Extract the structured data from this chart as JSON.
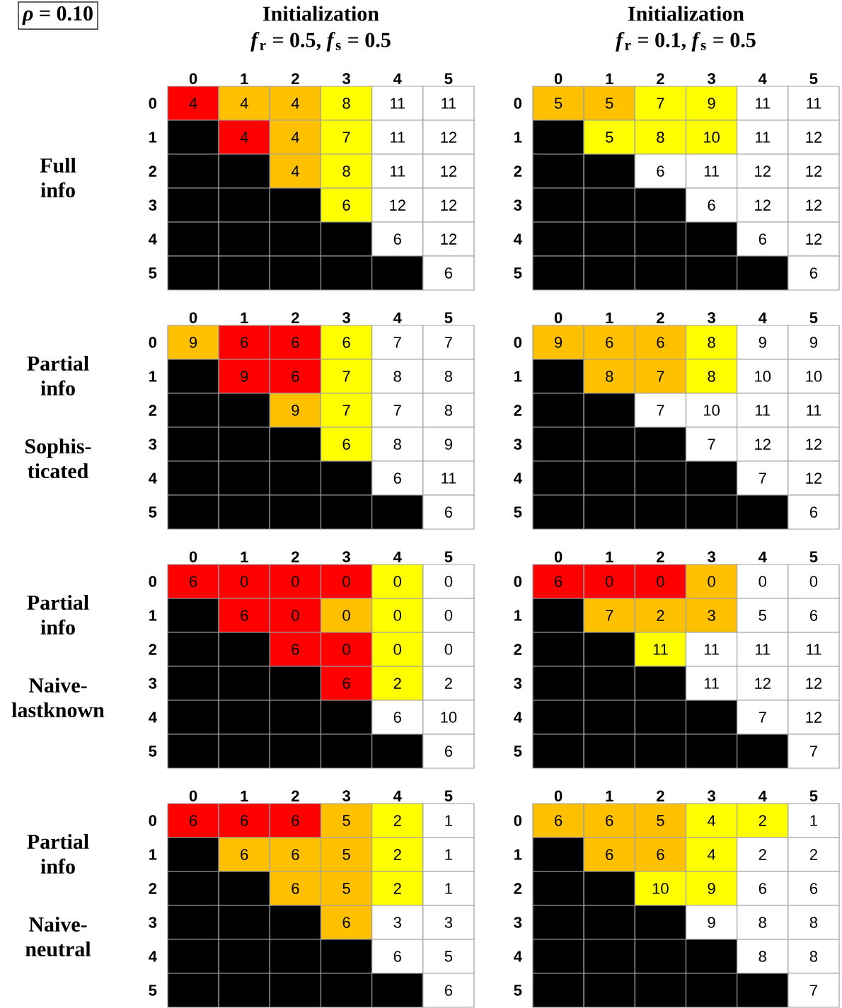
{
  "chart_data": [
    {
      "type": "heatmap",
      "title": "Initialization",
      "subtitle": "*f*$_{r}$ = 0.5, *f*$_{s}$ = 0.5",
      "ylabel": "Full info",
      "annotations": [
        "*ρ* = 0.10"
      ],
      "data_labels": true,
      "categories": [
        "0",
        "1",
        "2",
        "3",
        "4",
        "5"
      ],
      "y_categories": [
        "0",
        "1",
        "2",
        "3",
        "4",
        "5"
      ],
      "cells": [
        [
          4,
          4,
          4,
          8,
          11,
          11
        ],
        [
          null,
          4,
          4,
          7,
          11,
          12
        ],
        [
          null,
          null,
          4,
          8,
          11,
          12
        ],
        [
          null,
          null,
          null,
          6,
          12,
          12
        ],
        [
          null,
          null,
          null,
          null,
          6,
          12
        ],
        [
          null,
          null,
          null,
          null,
          null,
          6
        ]
      ],
      "colors": [
        [
          "#ff0000",
          "#ffc000",
          "#ffc000",
          "#ffff00",
          "#ffffff",
          "#ffffff"
        ],
        [
          "#000000",
          "#ff0000",
          "#ffc000",
          "#ffff00",
          "#ffffff",
          "#ffffff"
        ],
        [
          "#000000",
          "#000000",
          "#ffc000",
          "#ffff00",
          "#ffffff",
          "#ffffff"
        ],
        [
          "#000000",
          "#000000",
          "#000000",
          "#ffff00",
          "#ffffff",
          "#ffffff"
        ],
        [
          "#000000",
          "#000000",
          "#000000",
          "#000000",
          "#ffffff",
          "#ffffff"
        ],
        [
          "#000000",
          "#000000",
          "#000000",
          "#000000",
          "#000000",
          "#ffffff"
        ]
      ]
    },
    {
      "type": "heatmap",
      "title": "Initialization",
      "subtitle": "*f*$_{r}$ = 0.1, *f*$_{s}$ = 0.5",
      "data_labels": true,
      "categories": [
        "0",
        "1",
        "2",
        "3",
        "4",
        "5"
      ],
      "y_categories": [
        "0",
        "1",
        "2",
        "3",
        "4",
        "5"
      ],
      "cells": [
        [
          5,
          5,
          7,
          9,
          11,
          11
        ],
        [
          null,
          5,
          8,
          10,
          11,
          12
        ],
        [
          null,
          null,
          6,
          11,
          12,
          12
        ],
        [
          null,
          null,
          null,
          6,
          12,
          12
        ],
        [
          null,
          null,
          null,
          null,
          6,
          12
        ],
        [
          null,
          null,
          null,
          null,
          null,
          6
        ]
      ],
      "colors": [
        [
          "#ffc000",
          "#ffc000",
          "#ffff00",
          "#ffff00",
          "#ffffff",
          "#ffffff"
        ],
        [
          "#000000",
          "#ffff00",
          "#ffff00",
          "#ffff00",
          "#ffffff",
          "#ffffff"
        ],
        [
          "#000000",
          "#000000",
          "#ffffff",
          "#ffffff",
          "#ffffff",
          "#ffffff"
        ],
        [
          "#000000",
          "#000000",
          "#000000",
          "#ffffff",
          "#ffffff",
          "#ffffff"
        ],
        [
          "#000000",
          "#000000",
          "#000000",
          "#000000",
          "#ffffff",
          "#ffffff"
        ],
        [
          "#000000",
          "#000000",
          "#000000",
          "#000000",
          "#000000",
          "#ffffff"
        ]
      ]
    },
    {
      "type": "heatmap",
      "ylabel": "Partial info",
      "annotations": [
        "Sophis-ticated"
      ],
      "data_labels": true,
      "categories": [
        "0",
        "1",
        "2",
        "3",
        "4",
        "5"
      ],
      "y_categories": [
        "0",
        "1",
        "2",
        "3",
        "4",
        "5"
      ],
      "cells": [
        [
          9,
          6,
          6,
          6,
          7,
          7
        ],
        [
          null,
          9,
          6,
          7,
          8,
          8
        ],
        [
          null,
          null,
          9,
          7,
          7,
          8
        ],
        [
          null,
          null,
          null,
          6,
          8,
          9
        ],
        [
          null,
          null,
          null,
          null,
          6,
          11
        ],
        [
          null,
          null,
          null,
          null,
          null,
          6
        ]
      ],
      "colors": [
        [
          "#ffc000",
          "#ff0000",
          "#ff0000",
          "#ffff00",
          "#ffffff",
          "#ffffff"
        ],
        [
          "#000000",
          "#ff0000",
          "#ff0000",
          "#ffff00",
          "#ffffff",
          "#ffffff"
        ],
        [
          "#000000",
          "#000000",
          "#ffc000",
          "#ffff00",
          "#ffffff",
          "#ffffff"
        ],
        [
          "#000000",
          "#000000",
          "#000000",
          "#ffff00",
          "#ffffff",
          "#ffffff"
        ],
        [
          "#000000",
          "#000000",
          "#000000",
          "#000000",
          "#ffffff",
          "#ffffff"
        ],
        [
          "#000000",
          "#000000",
          "#000000",
          "#000000",
          "#000000",
          "#ffffff"
        ]
      ]
    },
    {
      "type": "heatmap",
      "data_labels": true,
      "categories": [
        "0",
        "1",
        "2",
        "3",
        "4",
        "5"
      ],
      "y_categories": [
        "0",
        "1",
        "2",
        "3",
        "4",
        "5"
      ],
      "cells": [
        [
          9,
          6,
          6,
          8,
          9,
          9
        ],
        [
          null,
          8,
          7,
          8,
          10,
          10
        ],
        [
          null,
          null,
          7,
          10,
          11,
          11
        ],
        [
          null,
          null,
          null,
          7,
          12,
          12
        ],
        [
          null,
          null,
          null,
          null,
          7,
          12
        ],
        [
          null,
          null,
          null,
          null,
          null,
          6
        ]
      ],
      "colors": [
        [
          "#ffc000",
          "#ffc000",
          "#ffc000",
          "#ffff00",
          "#ffffff",
          "#ffffff"
        ],
        [
          "#000000",
          "#ffc000",
          "#ffc000",
          "#ffff00",
          "#ffffff",
          "#ffffff"
        ],
        [
          "#000000",
          "#000000",
          "#ffffff",
          "#ffffff",
          "#ffffff",
          "#ffffff"
        ],
        [
          "#000000",
          "#000000",
          "#000000",
          "#ffffff",
          "#ffffff",
          "#ffffff"
        ],
        [
          "#000000",
          "#000000",
          "#000000",
          "#000000",
          "#ffffff",
          "#ffffff"
        ],
        [
          "#000000",
          "#000000",
          "#000000",
          "#000000",
          "#000000",
          "#ffffff"
        ]
      ]
    },
    {
      "type": "heatmap",
      "ylabel": "Partial info",
      "annotations": [
        "Naive-lastknown"
      ],
      "data_labels": true,
      "categories": [
        "0",
        "1",
        "2",
        "3",
        "4",
        "5"
      ],
      "y_categories": [
        "0",
        "1",
        "2",
        "3",
        "4",
        "5"
      ],
      "cells": [
        [
          6,
          0,
          0,
          0,
          0,
          0
        ],
        [
          null,
          6,
          0,
          0,
          0,
          0
        ],
        [
          null,
          null,
          6,
          0,
          0,
          0
        ],
        [
          null,
          null,
          null,
          6,
          2,
          2
        ],
        [
          null,
          null,
          null,
          null,
          6,
          10
        ],
        [
          null,
          null,
          null,
          null,
          null,
          6
        ]
      ],
      "colors": [
        [
          "#ff0000",
          "#ff0000",
          "#ff0000",
          "#ff0000",
          "#ffff00",
          "#ffffff"
        ],
        [
          "#000000",
          "#ff0000",
          "#ff0000",
          "#ffc000",
          "#ffff00",
          "#ffffff"
        ],
        [
          "#000000",
          "#000000",
          "#ff0000",
          "#ff0000",
          "#ffff00",
          "#ffffff"
        ],
        [
          "#000000",
          "#000000",
          "#000000",
          "#ff0000",
          "#ffff00",
          "#ffffff"
        ],
        [
          "#000000",
          "#000000",
          "#000000",
          "#000000",
          "#ffffff",
          "#ffffff"
        ],
        [
          "#000000",
          "#000000",
          "#000000",
          "#000000",
          "#000000",
          "#ffffff"
        ]
      ]
    },
    {
      "type": "heatmap",
      "data_labels": true,
      "categories": [
        "0",
        "1",
        "2",
        "3",
        "4",
        "5"
      ],
      "y_categories": [
        "0",
        "1",
        "2",
        "3",
        "4",
        "5"
      ],
      "cells": [
        [
          6,
          0,
          0,
          0,
          0,
          0
        ],
        [
          null,
          7,
          2,
          3,
          5,
          6
        ],
        [
          null,
          null,
          11,
          11,
          11,
          11
        ],
        [
          null,
          null,
          null,
          11,
          12,
          12
        ],
        [
          null,
          null,
          null,
          null,
          7,
          12
        ],
        [
          null,
          null,
          null,
          null,
          null,
          7
        ]
      ],
      "colors": [
        [
          "#ff0000",
          "#ff0000",
          "#ff0000",
          "#ffc000",
          "#ffffff",
          "#ffffff"
        ],
        [
          "#000000",
          "#ffc000",
          "#ffc000",
          "#ffc000",
          "#ffffff",
          "#ffffff"
        ],
        [
          "#000000",
          "#000000",
          "#ffff00",
          "#ffffff",
          "#ffffff",
          "#ffffff"
        ],
        [
          "#000000",
          "#000000",
          "#000000",
          "#ffffff",
          "#ffffff",
          "#ffffff"
        ],
        [
          "#000000",
          "#000000",
          "#000000",
          "#000000",
          "#ffffff",
          "#ffffff"
        ],
        [
          "#000000",
          "#000000",
          "#000000",
          "#000000",
          "#000000",
          "#ffffff"
        ]
      ]
    },
    {
      "type": "heatmap",
      "ylabel": "Partial info",
      "annotations": [
        "Naive-neutral"
      ],
      "data_labels": true,
      "categories": [
        "0",
        "1",
        "2",
        "3",
        "4",
        "5"
      ],
      "y_categories": [
        "0",
        "1",
        "2",
        "3",
        "4",
        "5"
      ],
      "cells": [
        [
          6,
          6,
          6,
          5,
          2,
          1
        ],
        [
          null,
          6,
          6,
          5,
          2,
          1
        ],
        [
          null,
          null,
          6,
          5,
          2,
          1
        ],
        [
          null,
          null,
          null,
          6,
          3,
          3
        ],
        [
          null,
          null,
          null,
          null,
          6,
          5
        ],
        [
          null,
          null,
          null,
          null,
          null,
          6
        ]
      ],
      "colors": [
        [
          "#ff0000",
          "#ff0000",
          "#ff0000",
          "#ffc000",
          "#ffff00",
          "#ffffff"
        ],
        [
          "#000000",
          "#ffc000",
          "#ffc000",
          "#ffc000",
          "#ffff00",
          "#ffffff"
        ],
        [
          "#000000",
          "#000000",
          "#ffc000",
          "#ffc000",
          "#ffff00",
          "#ffffff"
        ],
        [
          "#000000",
          "#000000",
          "#000000",
          "#ffc000",
          "#ffffff",
          "#ffffff"
        ],
        [
          "#000000",
          "#000000",
          "#000000",
          "#000000",
          "#ffffff",
          "#ffffff"
        ],
        [
          "#000000",
          "#000000",
          "#000000",
          "#000000",
          "#000000",
          "#ffffff"
        ]
      ]
    },
    {
      "type": "heatmap",
      "data_labels": true,
      "categories": [
        "0",
        "1",
        "2",
        "3",
        "4",
        "5"
      ],
      "y_categories": [
        "0",
        "1",
        "2",
        "3",
        "4",
        "5"
      ],
      "cells": [
        [
          6,
          6,
          5,
          4,
          2,
          1
        ],
        [
          null,
          6,
          6,
          4,
          2,
          2
        ],
        [
          null,
          null,
          10,
          9,
          6,
          6
        ],
        [
          null,
          null,
          null,
          9,
          8,
          8
        ],
        [
          null,
          null,
          null,
          null,
          8,
          8
        ],
        [
          null,
          null,
          null,
          null,
          null,
          7
        ]
      ],
      "colors": [
        [
          "#ffc000",
          "#ffc000",
          "#ffc000",
          "#ffff00",
          "#ffff00",
          "#ffffff"
        ],
        [
          "#000000",
          "#ffc000",
          "#ffc000",
          "#ffff00",
          "#ffffff",
          "#ffffff"
        ],
        [
          "#000000",
          "#000000",
          "#ffff00",
          "#ffff00",
          "#ffffff",
          "#ffffff"
        ],
        [
          "#000000",
          "#000000",
          "#000000",
          "#ffffff",
          "#ffffff",
          "#ffffff"
        ],
        [
          "#000000",
          "#000000",
          "#000000",
          "#000000",
          "#ffffff",
          "#ffffff"
        ],
        [
          "#000000",
          "#000000",
          "#000000",
          "#000000",
          "#000000",
          "#ffffff"
        ]
      ]
    }
  ]
}
